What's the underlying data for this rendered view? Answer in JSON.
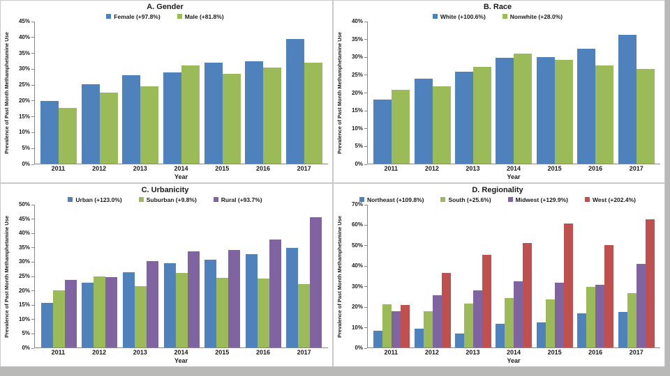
{
  "page": {
    "background_color": "#b9bab8",
    "canvas_color": "#ffffff",
    "axis_color": "#868686",
    "text_color": "#1a1a1a"
  },
  "colors": {
    "blue": "#4F81BD",
    "green": "#9BBB59",
    "purple": "#8064A2",
    "red": "#C0504D"
  },
  "chart_data": [
    {
      "type": "bar",
      "title": "A. Gender",
      "categories": [
        "2011",
        "2012",
        "2013",
        "2014",
        "2015",
        "2016",
        "2017"
      ],
      "series": [
        {
          "name": "Female",
          "legend": "Female (+97.8%)",
          "color": "#4F81BD",
          "values": [
            19.9,
            25.1,
            28.1,
            29.0,
            32.0,
            32.4,
            39.4
          ]
        },
        {
          "name": "Male",
          "legend": "Male (+81.8%)",
          "color": "#9BBB59",
          "values": [
            17.6,
            22.4,
            24.4,
            31.0,
            28.4,
            30.5,
            32.0
          ]
        }
      ],
      "xlabel": "Year",
      "ylabel": "Prevalence of Past Month Methamphetamine Use",
      "ylim": [
        0,
        45
      ],
      "y_step": 5,
      "y_tick_suffix": "%",
      "grid": false,
      "legend_position": "top"
    },
    {
      "type": "bar",
      "title": "B. Race",
      "categories": [
        "2011",
        "2012",
        "2013",
        "2014",
        "2015",
        "2016",
        "2017"
      ],
      "series": [
        {
          "name": "White",
          "legend": "White (+100.6%)",
          "color": "#4F81BD",
          "values": [
            18.1,
            23.9,
            25.8,
            29.8,
            30.1,
            32.3,
            36.3
          ]
        },
        {
          "name": "Nonwhite",
          "legend": "Nonwhite (+28.0%)",
          "color": "#9BBB59",
          "values": [
            20.8,
            21.8,
            27.3,
            31.0,
            29.2,
            27.6,
            26.6
          ]
        }
      ],
      "xlabel": "Year",
      "ylabel": "Prevalence of Past Month Methamphetamine Use",
      "ylim": [
        0,
        40
      ],
      "y_step": 5,
      "y_tick_suffix": "%",
      "grid": false,
      "legend_position": "top"
    },
    {
      "type": "bar",
      "title": "C. Urbanicity",
      "categories": [
        "2011",
        "2012",
        "2013",
        "2014",
        "2015",
        "2016",
        "2017"
      ],
      "series": [
        {
          "name": "Urban",
          "legend": "Urban (+123.0%)",
          "color": "#4F81BD",
          "values": [
            15.6,
            22.8,
            26.4,
            29.6,
            30.7,
            32.6,
            34.8
          ]
        },
        {
          "name": "Suburban",
          "legend": "Suburban (+9.8%)",
          "color": "#9BBB59",
          "values": [
            20.1,
            24.9,
            21.5,
            26.2,
            24.3,
            24.2,
            22.1
          ]
        },
        {
          "name": "Rural",
          "legend": "Rural (+93.7%)",
          "color": "#8064A2",
          "values": [
            23.6,
            24.7,
            30.3,
            33.6,
            34.2,
            37.7,
            45.7
          ]
        }
      ],
      "xlabel": "Year",
      "ylabel": "Prevalence of Past Month Methamphetamine Use",
      "ylim": [
        0,
        50
      ],
      "y_step": 5,
      "y_tick_suffix": "%",
      "grid": false,
      "legend_position": "top"
    },
    {
      "type": "bar",
      "title": "D. Regionality",
      "categories": [
        "2011",
        "2012",
        "2013",
        "2014",
        "2015",
        "2016",
        "2017"
      ],
      "series": [
        {
          "name": "Northeast",
          "legend": "Northeast (+109.8%)",
          "color": "#4F81BD",
          "values": [
            8.3,
            9.2,
            6.7,
            11.5,
            12.2,
            16.8,
            17.4
          ]
        },
        {
          "name": "South",
          "legend": "South (+25.6%)",
          "color": "#9BBB59",
          "values": [
            21.1,
            17.8,
            21.6,
            24.2,
            23.4,
            29.8,
            26.5
          ]
        },
        {
          "name": "Midwest",
          "legend": "Midwest (+129.9%)",
          "color": "#8064A2",
          "values": [
            17.8,
            25.6,
            27.9,
            32.6,
            31.8,
            30.7,
            40.9
          ]
        },
        {
          "name": "West",
          "legend": "West (+202.4%)",
          "color": "#C0504D",
          "values": [
            20.8,
            36.5,
            45.5,
            51.2,
            60.8,
            50.2,
            62.9
          ]
        }
      ],
      "xlabel": "Year",
      "ylabel": "Prevalence of Past Month Methamphetamine Use",
      "ylim": [
        0,
        70
      ],
      "y_step": 10,
      "y_tick_suffix": "%",
      "grid": false,
      "legend_position": "top"
    }
  ]
}
